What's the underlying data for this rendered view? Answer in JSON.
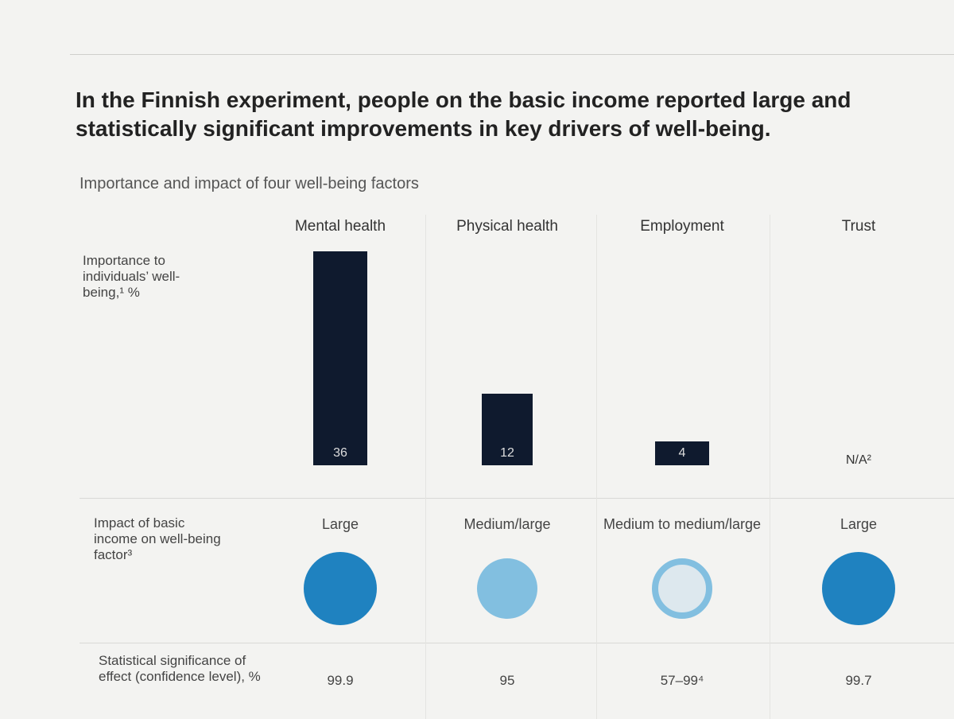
{
  "chart_data": {
    "type": "bar",
    "title": "In the Finnish experiment, people on the basic income reported large and statistically significant improvements in key drivers of well-being.",
    "subtitle": "Importance and impact of four well-being factors",
    "categories": [
      "Mental health",
      "Physical health",
      "Employment",
      "Trust"
    ],
    "row_labels": {
      "importance": "Importance to individuals’ well-being,¹ %",
      "impact": "Impact of basic income on well-being factor³",
      "significance": "Statistical significance of effect (confidence level), %"
    },
    "values": [
      36,
      12,
      4,
      null
    ],
    "value_labels": [
      "36",
      "12",
      "4",
      "N/A²"
    ],
    "color": "#0f1a2e",
    "impact": {
      "labels": [
        "Large",
        "Medium/large",
        "Medium to medium/large",
        "Large"
      ],
      "styles": [
        "filled",
        "filled",
        "ring",
        "filled"
      ],
      "colors": [
        "#1f82c0",
        "#82bfe0",
        "#82bfe0",
        "#1f82c0"
      ]
    },
    "significance": [
      "99.9",
      "95",
      "57–99⁴",
      "99.7"
    ]
  }
}
